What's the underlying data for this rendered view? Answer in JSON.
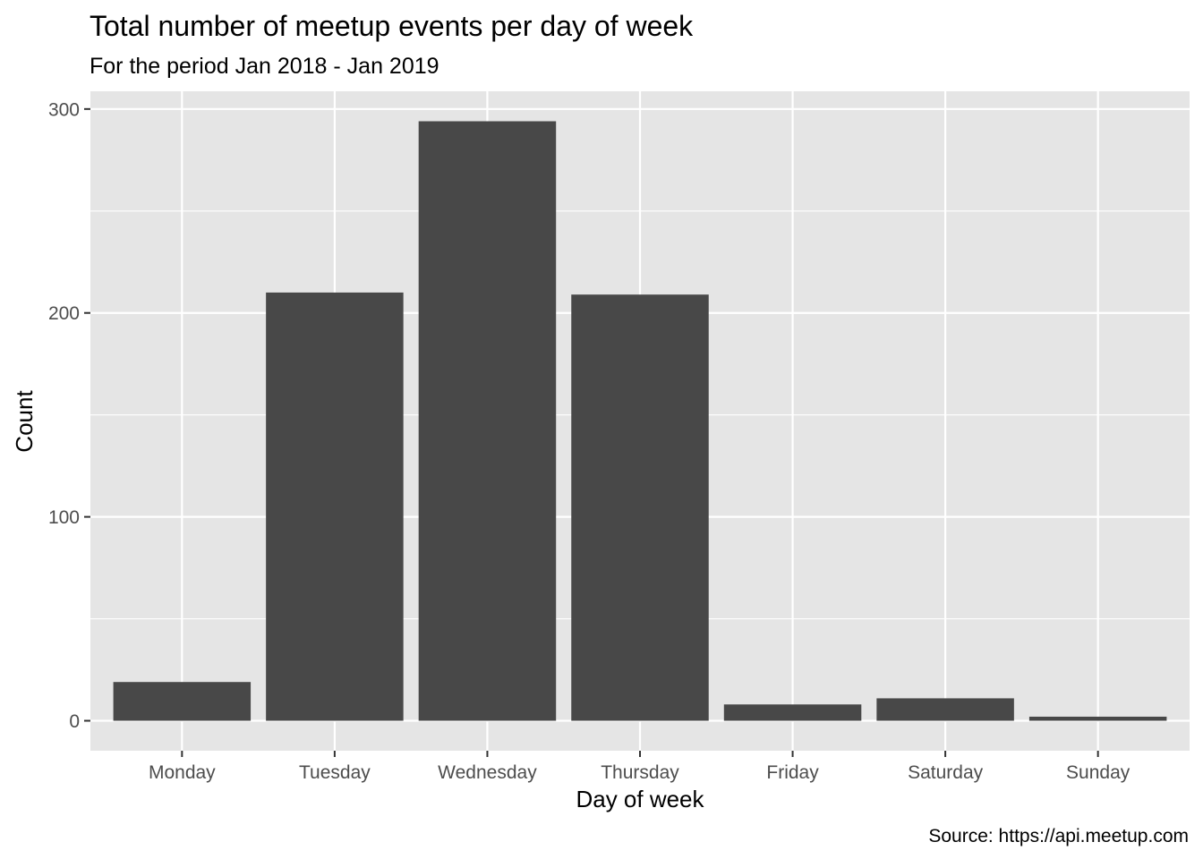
{
  "chart_data": {
    "type": "bar",
    "title": "Total number of meetup events per day of week",
    "subtitle": "For the period Jan 2018 - Jan 2019",
    "xlabel": "Day of week",
    "ylabel": "Count",
    "caption": "Source: https://api.meetup.com",
    "categories": [
      "Monday",
      "Tuesday",
      "Wednesday",
      "Thursday",
      "Friday",
      "Saturday",
      "Sunday"
    ],
    "values": [
      19,
      210,
      294,
      209,
      8,
      11,
      2
    ],
    "ylim": [
      -14.7,
      308.7
    ],
    "yticks": [
      0,
      100,
      200,
      300
    ],
    "ytick_labels": [
      "0",
      "100",
      "200",
      "300"
    ],
    "grid": true,
    "legend": "none",
    "colors": {
      "bar": "#484848",
      "panel": "#e5e5e5",
      "grid": "#ffffff"
    }
  }
}
